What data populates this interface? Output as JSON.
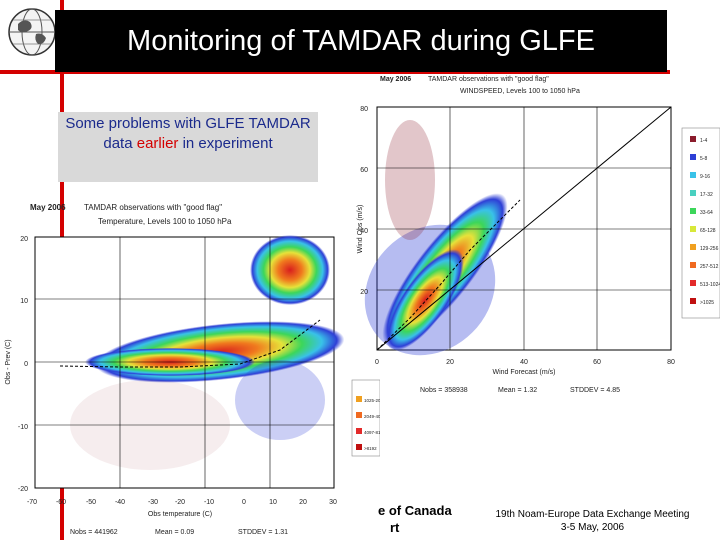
{
  "slide": {
    "title": "Monitoring of TAMDAR during GLFE",
    "note_pre": "Some problems with GLFE TAMDAR data ",
    "note_highlight": "earlier",
    "note_post": " in experiment",
    "footer_org_line1": "e of Canada",
    "footer_org_line2": "rt",
    "footer_meeting_line1": "19th Noam-Europe Data Exchange Meeting",
    "footer_meeting_line2": "3-5 May, 2006"
  },
  "temp_plot": {
    "header_month": "May 2006",
    "header_desc": "TAMDAR observations with \"good flag\"",
    "subtitle": "Temperature, Levels 100 to 1050 hPa",
    "xlabel": "Obs temperature (C)",
    "ylabel": "Obs - Prev (C)",
    "x_ticks": [
      "-70",
      "-60",
      "-50",
      "-40",
      "-30",
      "-20",
      "-10",
      "0",
      "10",
      "20",
      "30"
    ],
    "y_ticks": [
      "20",
      "10",
      "0",
      "-10",
      "-20"
    ],
    "nobs": "Nobs = 441962",
    "mean": "Mean = 0.09",
    "stddev": "STDDEV = 1.31"
  },
  "wind_plot": {
    "header_month": "May 2006",
    "header_desc": "TAMDAR observations with \"good flag\"",
    "subtitle": "WINDSPEED, Levels 100 to 1050 hPa",
    "xlabel": "Wind Forecast (m/s)",
    "ylabel": "Wind Obs (m/s)",
    "x_ticks": [
      "0",
      "20",
      "40",
      "60",
      "80"
    ],
    "y_ticks": [
      "80",
      "60",
      "40",
      "20",
      "0"
    ],
    "nobs": "Nobs = 358938",
    "mean": "Mean = 1.32",
    "stddev": "STDDEV = 4.85"
  },
  "legend_wind": [
    "1-4",
    "5-8",
    "9-16",
    "17-32",
    "33-64",
    "65-128",
    "129-256",
    "257-512",
    "513-1024",
    ">1025"
  ],
  "legend_temp": [
    "1025-2048",
    "2049-4096",
    "4097-8192",
    ">8192"
  ],
  "colors": {
    "accent_red": "#d40000",
    "note_text": "#1b2a8c",
    "note_bg": "#d9d9d9",
    "legend_swatches": [
      "#8b1c2c",
      "#2e3fd6",
      "#39c2e8",
      "#49d0c0",
      "#3cd65a",
      "#d8e83a",
      "#f0a020",
      "#f06a20",
      "#e32a2a",
      "#c01010"
    ]
  }
}
